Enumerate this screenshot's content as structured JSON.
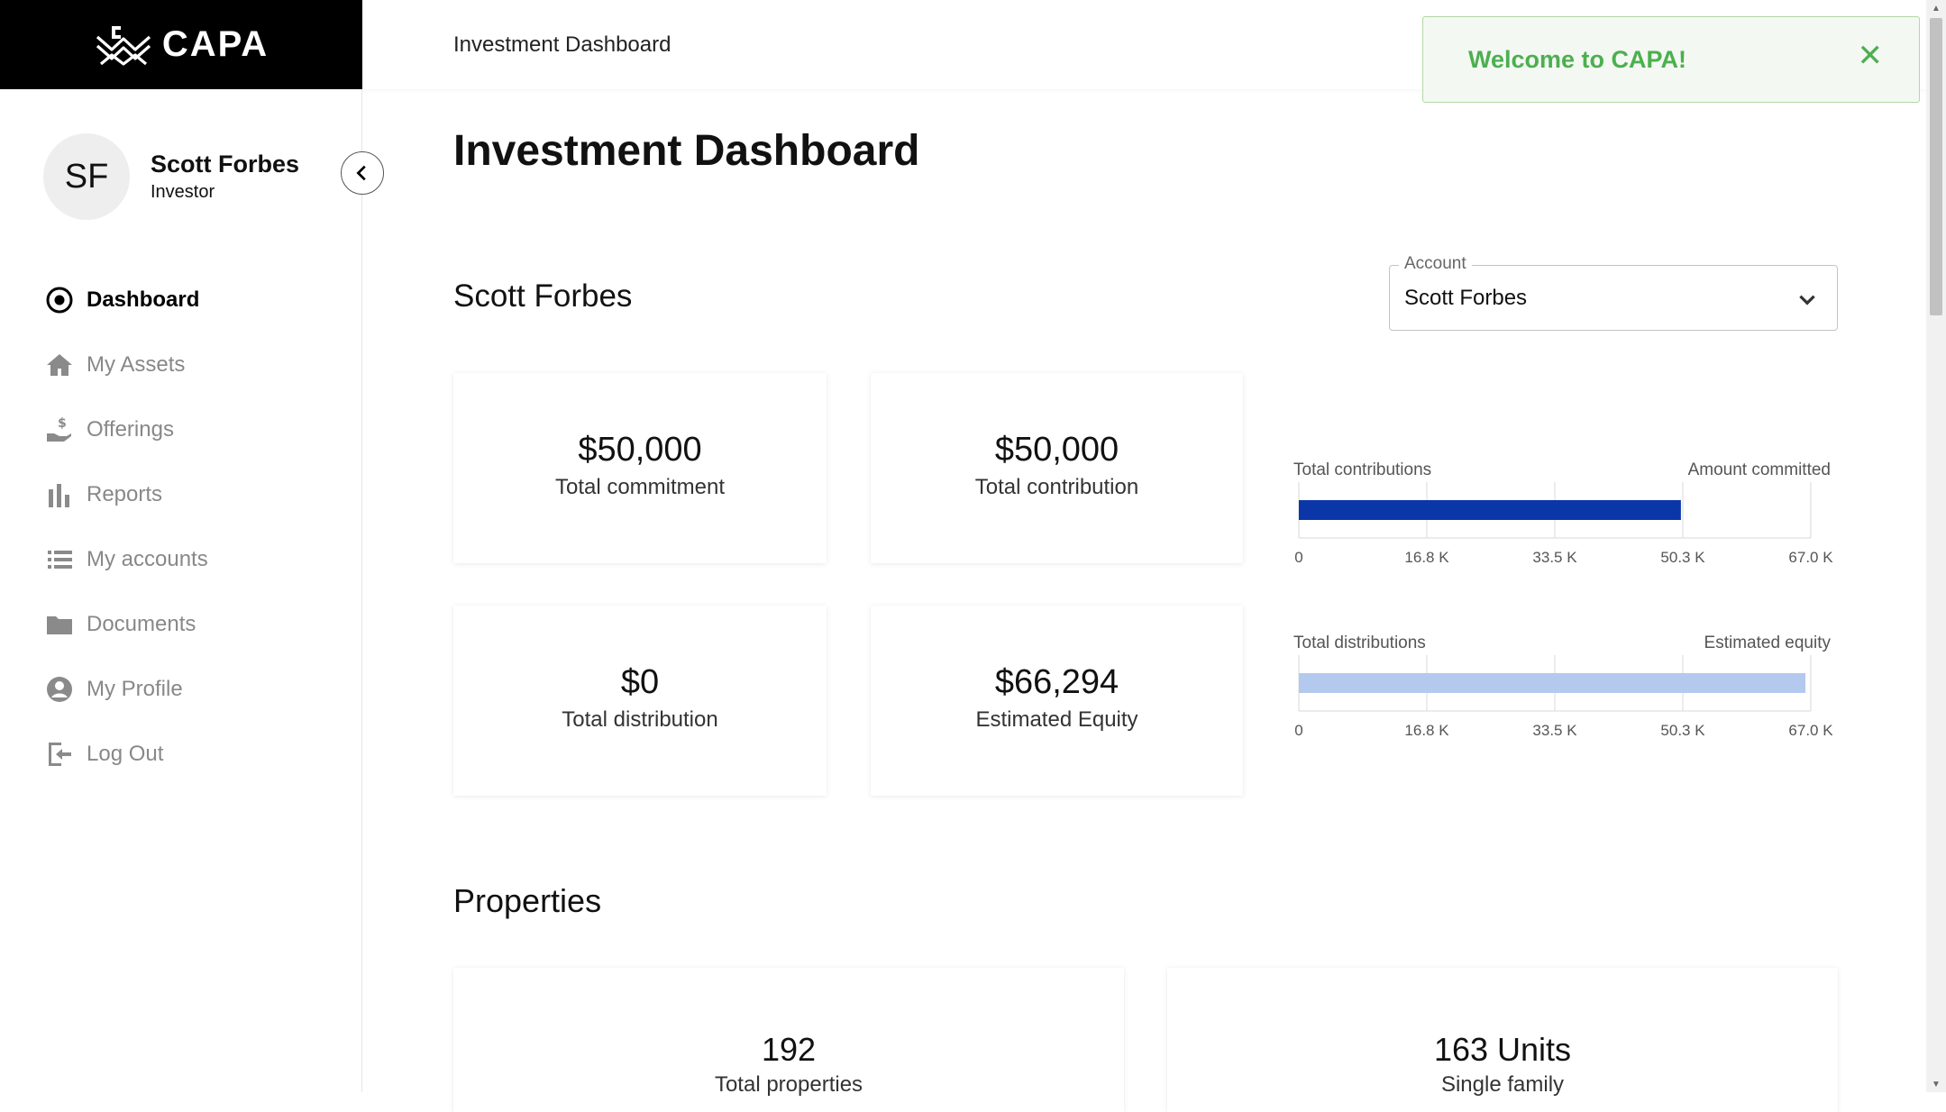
{
  "brand": {
    "name": "CAPA"
  },
  "user": {
    "initials": "SF",
    "name": "Scott Forbes",
    "role": "Investor"
  },
  "nav": [
    {
      "label": "Dashboard",
      "icon": "target-icon",
      "active": true
    },
    {
      "label": "My Assets",
      "icon": "home-icon"
    },
    {
      "label": "Offerings",
      "icon": "dollar-hand-icon"
    },
    {
      "label": "Reports",
      "icon": "bar-chart-icon"
    },
    {
      "label": "My accounts",
      "icon": "list-icon"
    },
    {
      "label": "Documents",
      "icon": "folder-icon"
    },
    {
      "label": "My Profile",
      "icon": "user-circle-icon"
    },
    {
      "label": "Log Out",
      "icon": "logout-icon"
    }
  ],
  "topbar": {
    "title": "Investment Dashboard"
  },
  "toast": {
    "message": "Welcome to CAPA!",
    "close": "✕",
    "color": "#4caf50"
  },
  "main": {
    "title": "Investment Dashboard",
    "account_name": "Scott Forbes",
    "account_select": {
      "label": "Account",
      "value": "Scott Forbes"
    }
  },
  "cards": [
    {
      "value": "$50,000",
      "label": "Total commitment"
    },
    {
      "value": "$50,000",
      "label": "Total contribution"
    },
    {
      "value": "$0",
      "label": "Total distribution"
    },
    {
      "value": "$66,294",
      "label": "Estimated Equity"
    }
  ],
  "chart_data": [
    {
      "type": "bar",
      "orientation": "horizontal",
      "label_left": "Total contributions",
      "label_right": "Amount committed",
      "value": 50000,
      "xlim": [
        0,
        67000
      ],
      "ticks": [
        "0",
        "16.8 K",
        "33.5 K",
        "50.3 K",
        "67.0 K"
      ],
      "tick_values": [
        0,
        16750,
        33500,
        50250,
        67000
      ],
      "color": "#0a36a8"
    },
    {
      "type": "bar",
      "orientation": "horizontal",
      "label_left": "Total distributions",
      "label_right": "Estimated equity",
      "value": 66294,
      "xlim": [
        0,
        67000
      ],
      "ticks": [
        "0",
        "16.8 K",
        "33.5 K",
        "50.3 K",
        "67.0 K"
      ],
      "tick_values": [
        0,
        16750,
        33500,
        50250,
        67000
      ],
      "color": "#b3c9ee"
    }
  ],
  "properties": {
    "title": "Properties",
    "items": [
      {
        "value": "192",
        "label": "Total properties"
      },
      {
        "value": "163 Units",
        "label": "Single family"
      }
    ]
  }
}
